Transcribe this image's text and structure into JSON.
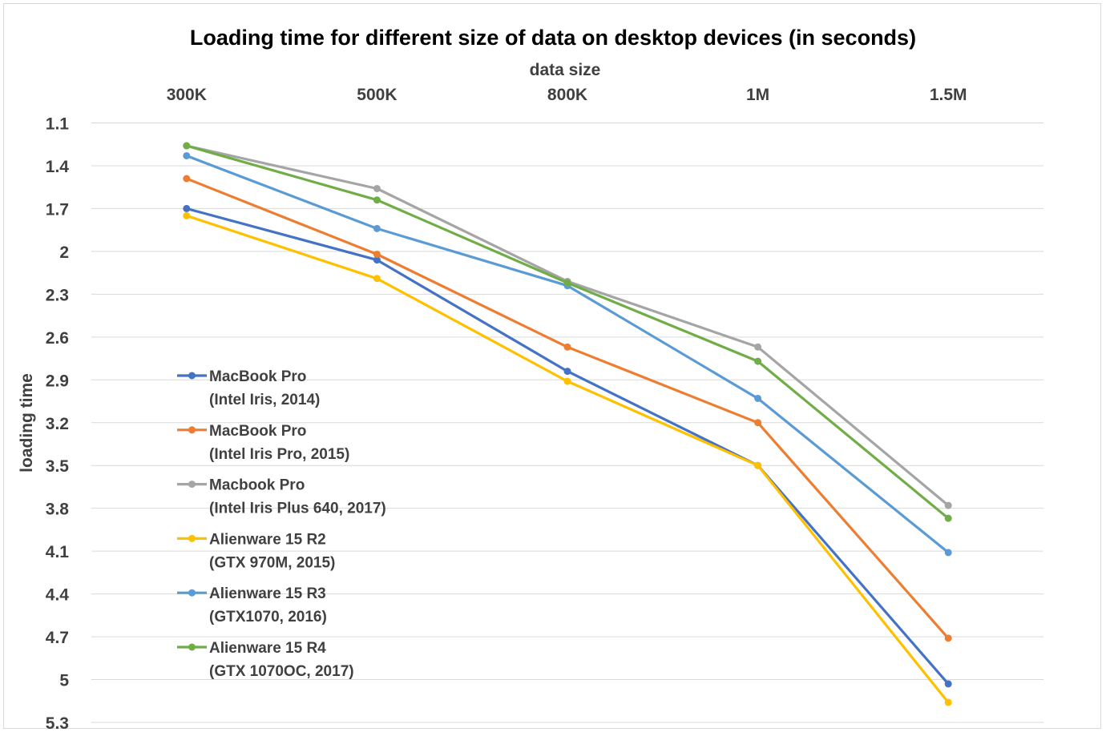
{
  "chart_data": {
    "type": "line",
    "title": "Loading time for different size of data on desktop devices (in seconds)",
    "xlabel": "data size",
    "ylabel": "loading time",
    "categories": [
      "300K",
      "500K",
      "800K",
      "1M",
      "1.5M"
    ],
    "y_ticks": [
      "1.1",
      "1.4",
      "1.7",
      "2",
      "2.3",
      "2.6",
      "2.9",
      "3.2",
      "3.5",
      "3.8",
      "4.1",
      "4.4",
      "4.7",
      "5",
      "5.3"
    ],
    "ylim": [
      1.1,
      5.3
    ],
    "y_axis_reversed": true,
    "x_axis_position": "top",
    "grid": "horizontal",
    "legend_position": "left, inside plot",
    "series": [
      {
        "name_line1": "MacBook Pro",
        "name_line2": "(Intel Iris, 2014)",
        "color": "#4472c4",
        "values": [
          1.7,
          2.06,
          2.84,
          3.5,
          5.03
        ]
      },
      {
        "name_line1": "MacBook Pro",
        "name_line2": "(Intel Iris Pro, 2015)",
        "color": "#ed7d31",
        "values": [
          1.49,
          2.02,
          2.67,
          3.2,
          4.71
        ]
      },
      {
        "name_line1": "Macbook Pro",
        "name_line2": "(Intel Iris Plus 640, 2017)",
        "color": "#a5a5a5",
        "values": [
          1.26,
          1.56,
          2.21,
          2.67,
          3.78
        ]
      },
      {
        "name_line1": "Alienware 15 R2",
        "name_line2": "(GTX 970M, 2015)",
        "color": "#ffc000",
        "values": [
          1.75,
          2.19,
          2.91,
          3.5,
          5.16
        ]
      },
      {
        "name_line1": "Alienware 15 R3",
        "name_line2": "(GTX1070, 2016)",
        "color": "#5b9bd5",
        "values": [
          1.33,
          1.84,
          2.24,
          3.03,
          4.11
        ]
      },
      {
        "name_line1": "Alienware 15 R4",
        "name_line2": "(GTX 1070OC, 2017)",
        "color": "#70ad47",
        "values": [
          1.26,
          1.64,
          2.22,
          2.77,
          3.87
        ]
      }
    ]
  }
}
